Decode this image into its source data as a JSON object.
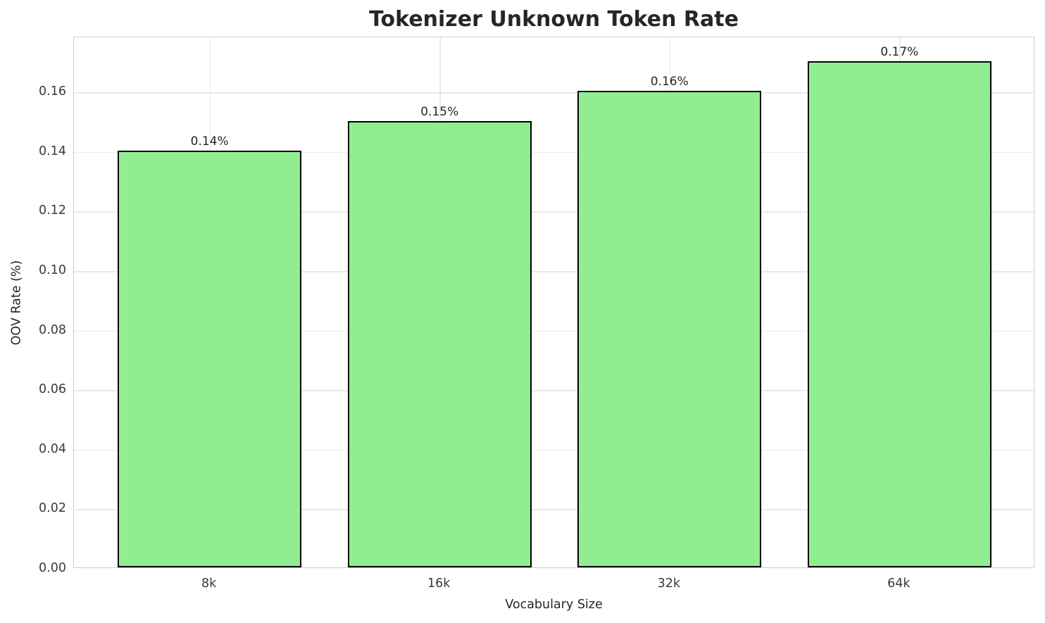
{
  "chart_data": {
    "type": "bar",
    "title": "Tokenizer Unknown Token Rate",
    "xlabel": "Vocabulary Size",
    "ylabel": "OOV Rate (%)",
    "categories": [
      "8k",
      "16k",
      "32k",
      "64k"
    ],
    "values": [
      0.14,
      0.15,
      0.16,
      0.17
    ],
    "bar_labels": [
      "0.14%",
      "0.15%",
      "0.16%",
      "0.17%"
    ],
    "ylim": [
      0,
      0.1785
    ],
    "yticks": [
      0,
      0.02,
      0.04,
      0.06,
      0.08,
      0.1,
      0.12,
      0.14,
      0.16
    ],
    "ytick_labels": [
      "0.00",
      "0.02",
      "0.04",
      "0.06",
      "0.08",
      "0.10",
      "0.12",
      "0.14",
      "0.16"
    ],
    "grid": true,
    "legend": null,
    "bar_color": "#90EE90",
    "bar_edge_color": "#000000",
    "grid_color": "#e9e9e9",
    "spine_color": "#cccccc",
    "text_color": "#262626"
  }
}
